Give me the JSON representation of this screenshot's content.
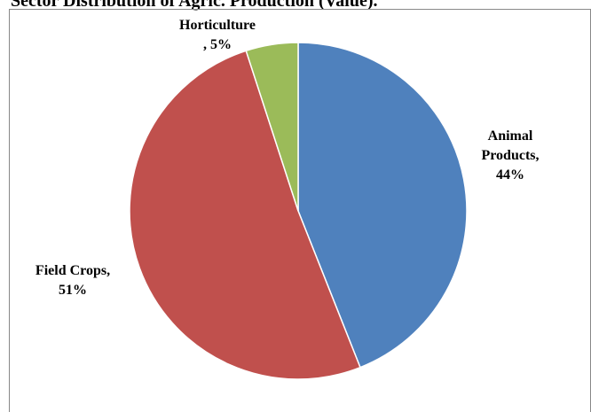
{
  "chart_data": {
    "type": "pie",
    "title": "Sector Distribution of Agric. Production (Value).",
    "categories": [
      "Animal Products",
      "Field Crops",
      "Horticulture"
    ],
    "values": [
      44,
      51,
      5
    ],
    "labels": [
      [
        "Animal",
        "Products,",
        "44%"
      ],
      [
        "Field Crops,",
        "51%"
      ],
      [
        "Horticulture",
        ", 5%"
      ]
    ],
    "colors": [
      "#4f81bd",
      "#c0504d",
      "#9bbb59"
    ],
    "slice_border": "#ffffff",
    "legend": "none"
  }
}
